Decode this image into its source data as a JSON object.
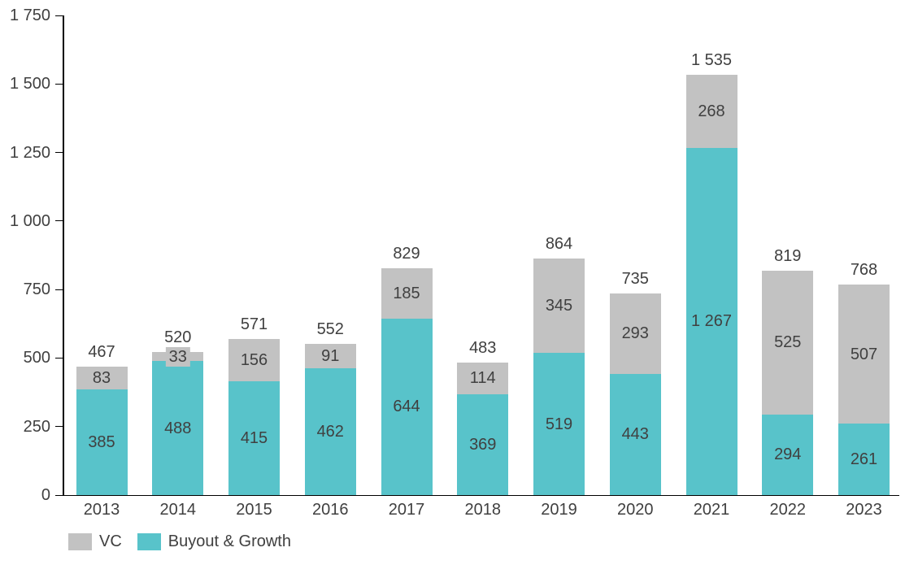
{
  "chart_data": {
    "type": "bar",
    "stacked": true,
    "title": "",
    "categories": [
      "2013",
      "2014",
      "2015",
      "2016",
      "2017",
      "2018",
      "2019",
      "2020",
      "2021",
      "2022",
      "2023"
    ],
    "series": [
      {
        "name": "Buyout & Growth",
        "color": "#58C3CA",
        "values": [
          385,
          488,
          415,
          462,
          644,
          369,
          519,
          443,
          1267,
          294,
          261
        ]
      },
      {
        "name": "VC",
        "color": "#C2C2C2",
        "values": [
          83,
          33,
          156,
          91,
          185,
          114,
          345,
          293,
          268,
          525,
          507
        ]
      }
    ],
    "totals": [
      467,
      520,
      571,
      552,
      829,
      483,
      864,
      735,
      1535,
      819,
      768
    ],
    "data_labels": true,
    "y_axis": {
      "min": 0,
      "max": 1750,
      "step": 250,
      "tick_labels": [
        "0",
        "250",
        "500",
        "750",
        "1 000",
        "1 250",
        "1 500",
        "1 750"
      ]
    },
    "legend": [
      {
        "label": "VC",
        "color": "#C2C2C2"
      },
      {
        "label": "Buyout & Growth",
        "color": "#58C3CA"
      }
    ],
    "legend_position": "bottom-left",
    "grid": false,
    "text_color": "#404040",
    "axis_color": "#000000"
  }
}
